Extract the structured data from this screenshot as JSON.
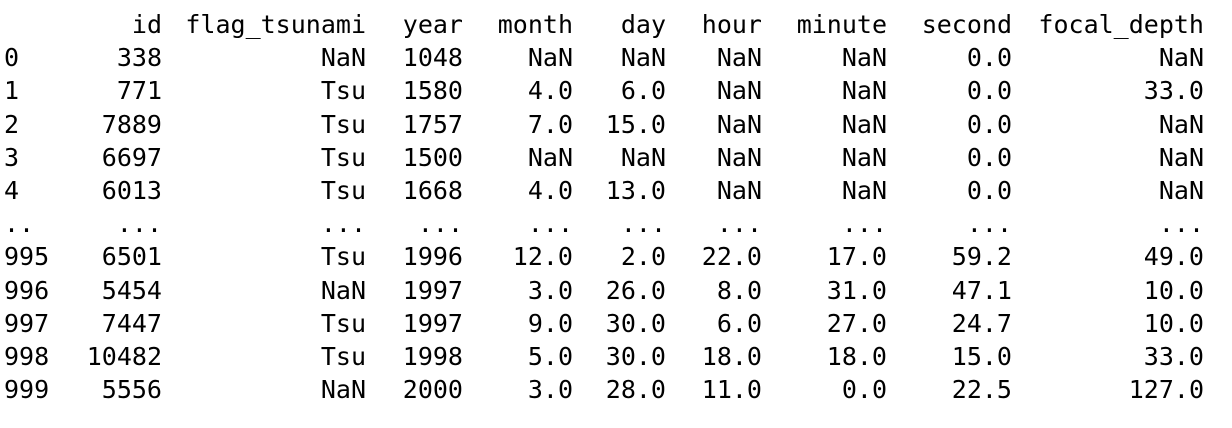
{
  "table": {
    "columns": [
      "id",
      "flag_tsunami",
      "year",
      "month",
      "day",
      "hour",
      "minute",
      "second",
      "focal_depth"
    ],
    "rows": [
      {
        "index": "0",
        "id": "338",
        "flag_tsunami": "NaN",
        "year": "1048",
        "month": "NaN",
        "day": "NaN",
        "hour": "NaN",
        "minute": "NaN",
        "second": "0.0",
        "focal_depth": "NaN"
      },
      {
        "index": "1",
        "id": "771",
        "flag_tsunami": "Tsu",
        "year": "1580",
        "month": "4.0",
        "day": "6.0",
        "hour": "NaN",
        "minute": "NaN",
        "second": "0.0",
        "focal_depth": "33.0"
      },
      {
        "index": "2",
        "id": "7889",
        "flag_tsunami": "Tsu",
        "year": "1757",
        "month": "7.0",
        "day": "15.0",
        "hour": "NaN",
        "minute": "NaN",
        "second": "0.0",
        "focal_depth": "NaN"
      },
      {
        "index": "3",
        "id": "6697",
        "flag_tsunami": "Tsu",
        "year": "1500",
        "month": "NaN",
        "day": "NaN",
        "hour": "NaN",
        "minute": "NaN",
        "second": "0.0",
        "focal_depth": "NaN"
      },
      {
        "index": "4",
        "id": "6013",
        "flag_tsunami": "Tsu",
        "year": "1668",
        "month": "4.0",
        "day": "13.0",
        "hour": "NaN",
        "minute": "NaN",
        "second": "0.0",
        "focal_depth": "NaN"
      },
      {
        "index": "..",
        "id": "...",
        "flag_tsunami": "...",
        "year": "...",
        "month": "...",
        "day": "...",
        "hour": "...",
        "minute": "...",
        "second": "...",
        "focal_depth": "..."
      },
      {
        "index": "995",
        "id": "6501",
        "flag_tsunami": "Tsu",
        "year": "1996",
        "month": "12.0",
        "day": "2.0",
        "hour": "22.0",
        "minute": "17.0",
        "second": "59.2",
        "focal_depth": "49.0"
      },
      {
        "index": "996",
        "id": "5454",
        "flag_tsunami": "NaN",
        "year": "1997",
        "month": "3.0",
        "day": "26.0",
        "hour": "8.0",
        "minute": "31.0",
        "second": "47.1",
        "focal_depth": "10.0"
      },
      {
        "index": "997",
        "id": "7447",
        "flag_tsunami": "Tsu",
        "year": "1997",
        "month": "9.0",
        "day": "30.0",
        "hour": "6.0",
        "minute": "27.0",
        "second": "24.7",
        "focal_depth": "10.0"
      },
      {
        "index": "998",
        "id": "10482",
        "flag_tsunami": "Tsu",
        "year": "1998",
        "month": "5.0",
        "day": "30.0",
        "hour": "18.0",
        "minute": "18.0",
        "second": "15.0",
        "focal_depth": "33.0"
      },
      {
        "index": "999",
        "id": "5556",
        "flag_tsunami": "NaN",
        "year": "2000",
        "month": "3.0",
        "day": "28.0",
        "hour": "11.0",
        "minute": "0.0",
        "second": "22.5",
        "focal_depth": "127.0"
      }
    ]
  }
}
